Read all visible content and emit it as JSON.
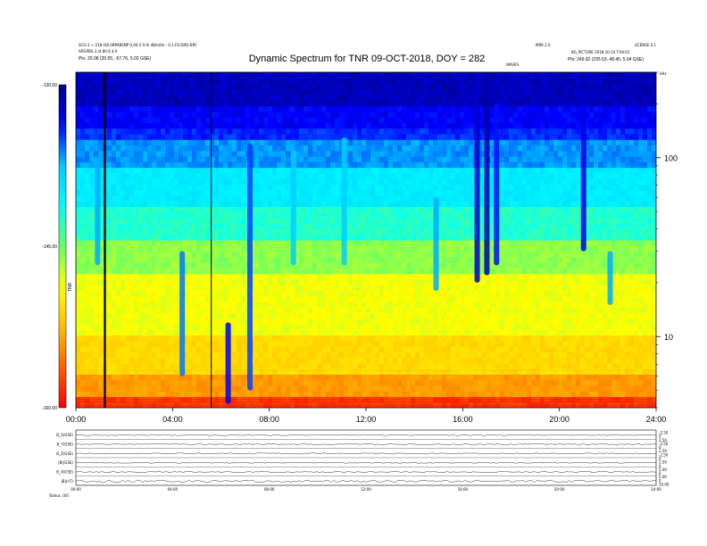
{
  "header": {
    "left_line1": "SCO-3 > 218 (00.0BPABSNP 0.00-5 0.0) dBm/Hz - 0.1-FE-DRQ-BPC",
    "left_line2": "ARGPBS 3 at 80.0 d.0",
    "left_line3": "Plo:    20.08 (20.55, -57.76, 5.02 GSE)",
    "right_line1": "LICENSE 0.1",
    "right_line2": "MRK 2.0",
    "right_line3": "BG_PICTURE 2018-10-10 T:00:01",
    "right_line4": "Plo:    249.92 (235.53, 48.45, 5.04 GSE)",
    "header_mid": "WAVES",
    "corner_label": "kHz"
  },
  "chart_data": {
    "type": "heatmap",
    "title": "Dynamic Spectrum for TNR 09-OCT-2018, DOY = 282",
    "x_tick_labels": [
      "00:00",
      "04:00",
      "08:00",
      "12:00",
      "16:00",
      "20:00",
      "24:00"
    ],
    "x_ticks_hours": [
      0,
      4,
      8,
      12,
      16,
      20,
      24
    ],
    "xlim_hours": [
      0,
      24
    ],
    "y_scale": "log",
    "y_tick_labels": [
      "100",
      "10"
    ],
    "y_ticks": [
      100,
      10
    ],
    "ylim": [
      4,
      300
    ],
    "colorbar": {
      "label": "TNR",
      "tick_labels": [
        "-130.00",
        "-145.00",
        "-160.00"
      ],
      "ticks": [
        -130,
        -145,
        -160
      ],
      "range": [
        -160,
        -130
      ],
      "colors": [
        "#00008c",
        "#0000ff",
        "#00c8ff",
        "#00ffff",
        "#66ff66",
        "#ffff00",
        "#ffc000",
        "#ff6000",
        "#ff0000"
      ]
    },
    "vertical_markers_hours": [
      1.2,
      5.6
    ],
    "events": [
      {
        "hour": 0.9,
        "fmin": 25,
        "fmax": 100,
        "db": -137
      },
      {
        "hour": 4.4,
        "fmin": 6,
        "fmax": 30,
        "db": -136
      },
      {
        "hour": 6.3,
        "fmin": 4.2,
        "fmax": 12,
        "db": -133
      },
      {
        "hour": 7.2,
        "fmin": 5,
        "fmax": 120,
        "db": -135
      },
      {
        "hour": 9.0,
        "fmin": 25,
        "fmax": 110,
        "db": -138
      },
      {
        "hour": 11.1,
        "fmin": 25,
        "fmax": 130,
        "db": -138
      },
      {
        "hour": 14.9,
        "fmin": 18,
        "fmax": 60,
        "db": -137
      },
      {
        "hour": 16.6,
        "fmin": 20,
        "fmax": 300,
        "db": -132
      },
      {
        "hour": 17.0,
        "fmin": 22,
        "fmax": 300,
        "db": -131
      },
      {
        "hour": 17.4,
        "fmin": 25,
        "fmax": 200,
        "db": -134
      },
      {
        "hour": 21.0,
        "fmin": 30,
        "fmax": 200,
        "db": -133
      },
      {
        "hour": 22.1,
        "fmin": 15,
        "fmax": 30,
        "db": -137
      }
    ]
  },
  "sub_panel": {
    "row_labels": [
      "B_X(GSE)",
      "B_Y(GSE)",
      "B_Z(GSE)",
      "|B|(GSE)",
      "B_X(GSE)",
      "|B|(nT)"
    ],
    "right_scale_labels": [
      "-2.50",
      "0",
      "2.50",
      "-2.50",
      "0",
      "2.50",
      "-2.50",
      "0",
      "2.50",
      "0",
      "5.00",
      "0",
      "5.00",
      "0",
      "10.00"
    ],
    "x_tick_labels": [
      "00:00",
      "04:00",
      "08:00",
      "12:00",
      "16:00",
      "20:00",
      "24:00"
    ],
    "footer_label": "Status:  0/0"
  }
}
